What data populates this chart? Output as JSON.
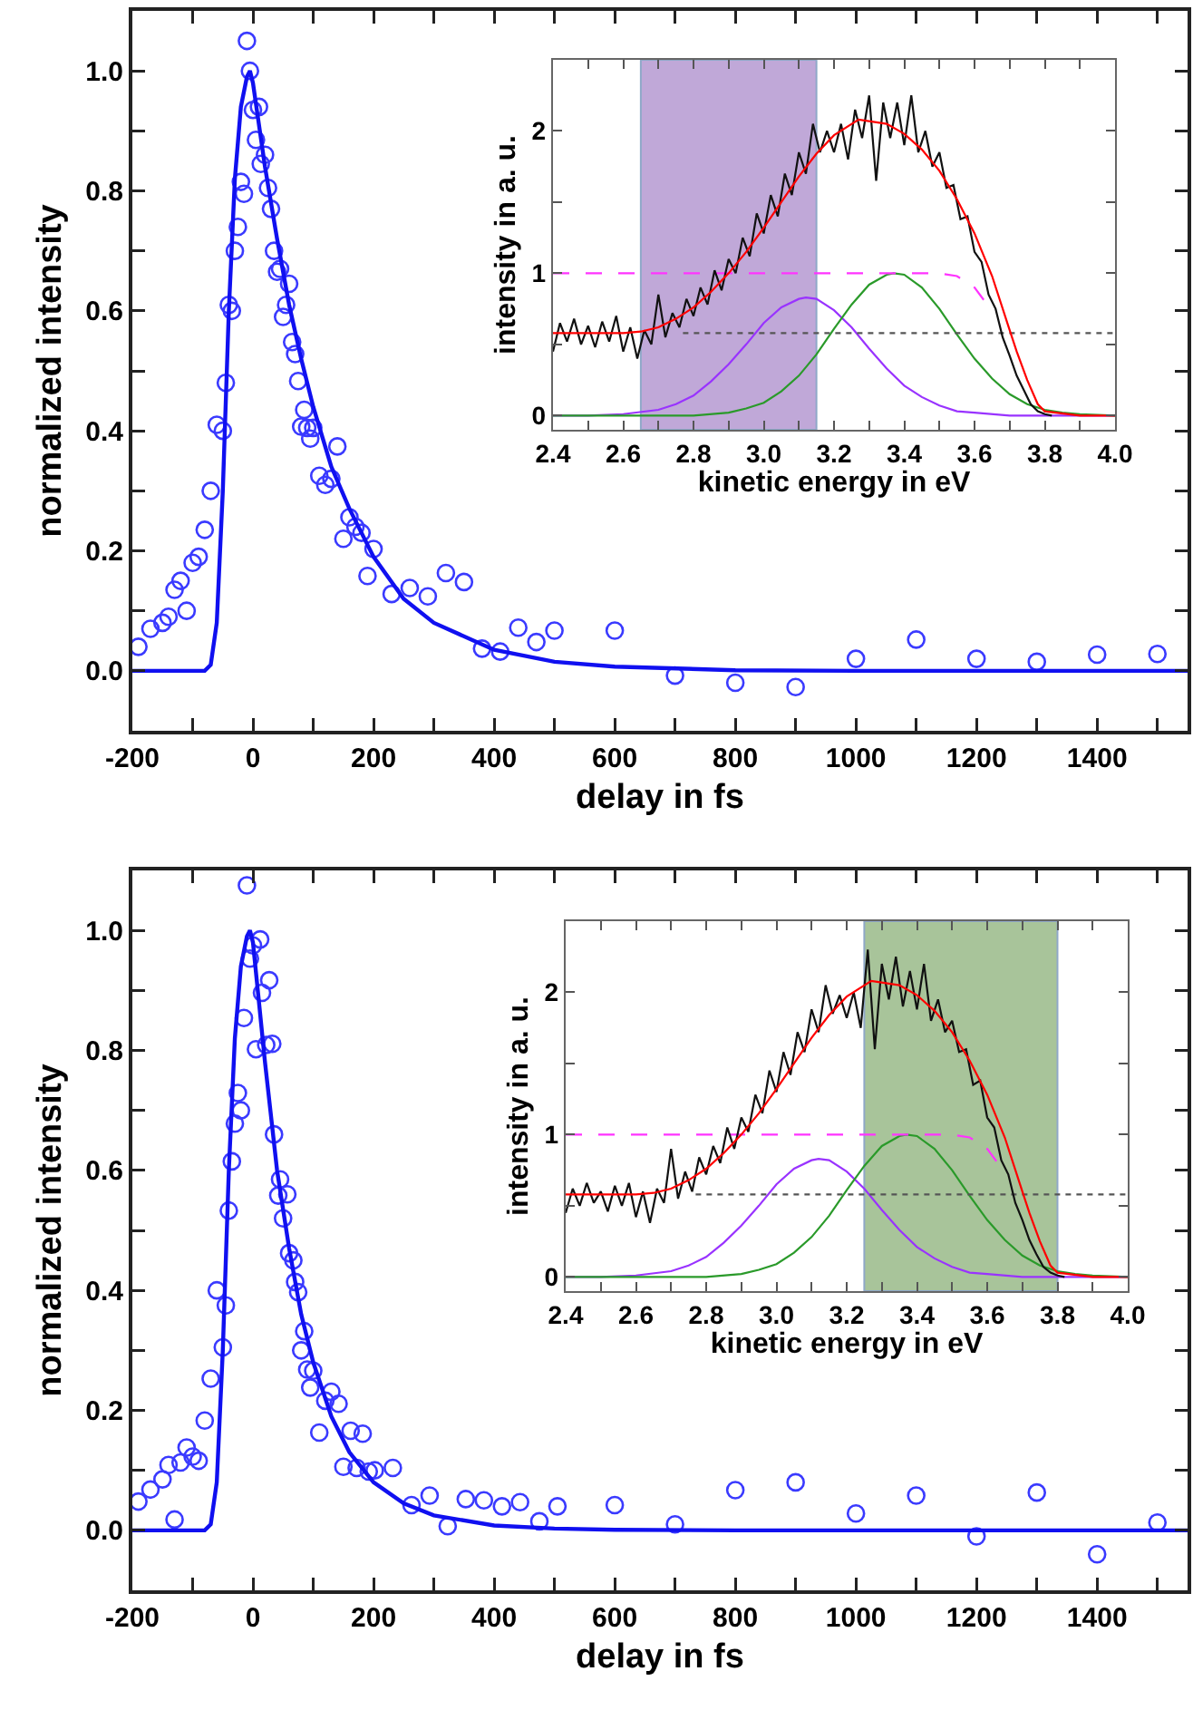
{
  "chart_data": [
    {
      "type": "scatter",
      "xlabel": "delay in fs",
      "ylabel": "normalized intensity",
      "xlim": [
        -200,
        1550
      ],
      "ylim": [
        -0.1,
        1.1
      ],
      "xticks": [
        -200,
        {
          "value": -100,
          "label": null
        },
        0,
        {
          "value": 100,
          "label": null
        },
        200,
        {
          "value": 300,
          "label": null
        },
        400,
        {
          "value": 500,
          "label": null
        },
        600,
        {
          "value": 700,
          "label": null
        },
        800,
        {
          "value": 900,
          "label": null
        },
        1000,
        {
          "value": 1100,
          "label": null
        },
        1200,
        {
          "value": 1300,
          "label": null
        },
        1400,
        {
          "value": 1500,
          "label": null
        }
      ],
      "yticks": [
        {
          "value": -0.1,
          "label": null
        },
        {
          "value": 0,
          "label": "0.0"
        },
        {
          "value": 0.1,
          "label": null
        },
        {
          "value": 0.2,
          "label": "0.2"
        },
        {
          "value": 0.3,
          "label": null
        },
        {
          "value": 0.4,
          "label": "0.4"
        },
        {
          "value": 0.5,
          "label": null
        },
        {
          "value": 0.6,
          "label": "0.6"
        },
        {
          "value": 0.7,
          "label": null
        },
        {
          "value": 0.8,
          "label": "0.8"
        },
        {
          "value": 0.9,
          "label": null
        },
        {
          "value": 1.0,
          "label": "1.0"
        }
      ],
      "series": [
        {
          "marker": "circle",
          "color": "#3a3aff",
          "x": [
            -190,
            -170,
            -150,
            -140,
            -130,
            -120,
            -110,
            -100,
            -90,
            -80,
            -70,
            -60,
            -50,
            -45,
            -40,
            -35,
            -30,
            -25,
            -20,
            -15,
            -10,
            -5,
            0,
            5,
            10,
            13,
            20,
            25,
            30,
            35,
            40,
            45,
            50,
            55,
            60,
            65,
            70,
            75,
            80,
            85,
            90,
            95,
            100,
            110,
            120,
            130,
            140,
            150,
            160,
            170,
            180,
            190,
            200,
            230,
            260,
            290,
            320,
            350,
            380,
            410,
            440,
            470,
            500,
            600,
            700,
            800,
            900,
            1000,
            1100,
            1200,
            1300,
            1400,
            1500
          ],
          "values": [
            0.04,
            0.07,
            0.08,
            0.09,
            0.135,
            0.15,
            0.1,
            0.18,
            0.19,
            0.235,
            0.3,
            0.41,
            0.4,
            0.48,
            0.61,
            0.6,
            0.7,
            0.74,
            0.815,
            0.795,
            1.05,
            1.0,
            0.935,
            0.885,
            0.94,
            0.845,
            0.86,
            0.805,
            0.77,
            0.7,
            0.665,
            0.67,
            0.59,
            0.61,
            0.645,
            0.548,
            0.528,
            0.483,
            0.407,
            0.435,
            0.405,
            0.387,
            0.405,
            0.325,
            0.31,
            0.32,
            0.374,
            0.22,
            0.256,
            0.24,
            0.23,
            0.158,
            0.203,
            0.128,
            0.138,
            0.124,
            0.163,
            0.148,
            0.037,
            0.032,
            0.072,
            0.048,
            0.067,
            0.067,
            -0.008,
            -0.02,
            -0.027,
            0.02,
            0.052,
            0.02,
            0.015,
            0.027,
            0.028
          ]
        },
        {
          "type": "line",
          "line_style": "solid",
          "color": "#1010f0",
          "x": [
            -200,
            -80,
            -70,
            -60,
            -50,
            -40,
            -30,
            -20,
            -10,
            -5,
            0,
            10,
            20,
            40,
            60,
            80,
            100,
            130,
            160,
            200,
            250,
            300,
            400,
            500,
            600,
            800,
            1000,
            1550
          ],
          "values": [
            0,
            0,
            0.01,
            0.08,
            0.3,
            0.6,
            0.82,
            0.94,
            0.99,
            1.0,
            0.98,
            0.91,
            0.84,
            0.72,
            0.61,
            0.52,
            0.44,
            0.34,
            0.27,
            0.19,
            0.12,
            0.08,
            0.035,
            0.015,
            0.007,
            0.001,
            0,
            0
          ]
        }
      ]
    },
    {
      "type": "line",
      "xlabel": "kinetic energy in eV",
      "ylabel": "intensity in a. u.",
      "xlim": [
        2.4,
        4.0
      ],
      "ylim": [
        -0.1,
        2.5
      ],
      "xticks": [
        {
          "value": 2.4,
          "label": "2.4"
        },
        {
          "value": 2.5,
          "label": null
        },
        {
          "value": 2.6,
          "label": "2.6"
        },
        {
          "value": 2.7,
          "label": null
        },
        {
          "value": 2.8,
          "label": "2.8"
        },
        {
          "value": 2.9,
          "label": null
        },
        {
          "value": 3.0,
          "label": "3.0"
        },
        {
          "value": 3.1,
          "label": null
        },
        {
          "value": 3.2,
          "label": "3.2"
        },
        {
          "value": 3.3,
          "label": null
        },
        {
          "value": 3.4,
          "label": "3.4"
        },
        {
          "value": 3.5,
          "label": null
        },
        {
          "value": 3.6,
          "label": "3.6"
        },
        {
          "value": 3.7,
          "label": null
        },
        {
          "value": 3.8,
          "label": "3.8"
        },
        {
          "value": 3.9,
          "label": null
        },
        {
          "value": 4.0,
          "label": "4.0"
        }
      ],
      "yticks": [
        0,
        {
          "value": 0.5,
          "label": null
        },
        1,
        {
          "value": 1.5,
          "label": null
        },
        2
      ],
      "bands": [
        {
          "axis": "x",
          "from": 2.65,
          "to": 3.15,
          "color": "#c0a8d8"
        }
      ],
      "series": [
        {
          "line_style": "solid",
          "color": "#9933ff",
          "x": [
            2.4,
            2.5,
            2.6,
            2.7,
            2.75,
            2.8,
            2.85,
            2.9,
            2.95,
            3.0,
            3.05,
            3.1,
            3.12,
            3.15,
            3.2,
            3.25,
            3.3,
            3.35,
            3.4,
            3.45,
            3.5,
            3.55,
            3.6,
            3.7,
            3.8,
            4.0
          ],
          "values": [
            0,
            0,
            0.01,
            0.04,
            0.08,
            0.14,
            0.24,
            0.36,
            0.5,
            0.65,
            0.76,
            0.82,
            0.83,
            0.82,
            0.74,
            0.62,
            0.47,
            0.33,
            0.21,
            0.13,
            0.07,
            0.03,
            0.02,
            0,
            0,
            0
          ]
        },
        {
          "type": "line",
          "line_style": "solid",
          "color": "#2a9a2a",
          "x": [
            2.4,
            2.7,
            2.8,
            2.9,
            2.95,
            3.0,
            3.05,
            3.1,
            3.15,
            3.2,
            3.25,
            3.3,
            3.35,
            3.37,
            3.4,
            3.45,
            3.5,
            3.55,
            3.6,
            3.65,
            3.7,
            3.75,
            3.8,
            3.85,
            3.9,
            4.0
          ],
          "values": [
            0,
            0,
            0,
            0.02,
            0.05,
            0.09,
            0.17,
            0.28,
            0.43,
            0.61,
            0.78,
            0.92,
            0.99,
            1.0,
            0.99,
            0.9,
            0.75,
            0.57,
            0.4,
            0.26,
            0.15,
            0.08,
            0.04,
            0.02,
            0.01,
            0
          ]
        },
        {
          "type": "line",
          "line_style": "dotted",
          "color": "#555555",
          "x": [
            2.77,
            4.0
          ],
          "values": [
            0.58,
            0.58
          ]
        },
        {
          "type": "line",
          "line_style": "dashed",
          "color": "#ff33ff",
          "x": [
            2.4,
            3.5,
            3.55,
            3.6,
            3.63
          ],
          "values": [
            1,
            1,
            0.98,
            0.9,
            0.8
          ]
        },
        {
          "type": "line",
          "line_style": "solid",
          "color": "#111111",
          "x": [
            2.4,
            2.42,
            2.44,
            2.46,
            2.48,
            2.5,
            2.52,
            2.54,
            2.56,
            2.58,
            2.6,
            2.62,
            2.64,
            2.66,
            2.68,
            2.7,
            2.72,
            2.74,
            2.76,
            2.78,
            2.8,
            2.82,
            2.84,
            2.86,
            2.88,
            2.9,
            2.92,
            2.94,
            2.96,
            2.98,
            3.0,
            3.02,
            3.04,
            3.06,
            3.08,
            3.1,
            3.12,
            3.14,
            3.16,
            3.18,
            3.2,
            3.22,
            3.24,
            3.26,
            3.28,
            3.3,
            3.32,
            3.34,
            3.36,
            3.38,
            3.4,
            3.42,
            3.44,
            3.46,
            3.48,
            3.5,
            3.52,
            3.54,
            3.56,
            3.58,
            3.6,
            3.62,
            3.64,
            3.66,
            3.68,
            3.7,
            3.72,
            3.74,
            3.76,
            3.78,
            3.8,
            3.82
          ],
          "values": [
            0.45,
            0.65,
            0.52,
            0.68,
            0.5,
            0.63,
            0.48,
            0.66,
            0.52,
            0.7,
            0.45,
            0.62,
            0.4,
            0.6,
            0.5,
            0.85,
            0.55,
            0.72,
            0.62,
            0.82,
            0.7,
            0.9,
            0.78,
            1.02,
            0.88,
            1.1,
            1.0,
            1.25,
            1.12,
            1.42,
            1.28,
            1.55,
            1.4,
            1.7,
            1.55,
            1.85,
            1.7,
            2.05,
            1.85,
            2.0,
            1.85,
            2.05,
            1.8,
            2.15,
            1.95,
            2.25,
            1.65,
            2.2,
            1.95,
            2.2,
            1.9,
            2.25,
            1.85,
            2.0,
            1.75,
            1.85,
            1.6,
            1.62,
            1.38,
            1.4,
            1.15,
            1.08,
            0.85,
            0.75,
            0.55,
            0.42,
            0.28,
            0.18,
            0.08,
            0.03,
            0.01,
            0.0
          ]
        },
        {
          "type": "line",
          "line_style": "solid",
          "color": "#ff0000",
          "x": [
            2.4,
            2.5,
            2.6,
            2.65,
            2.7,
            2.75,
            2.8,
            2.85,
            2.9,
            2.95,
            3.0,
            3.05,
            3.1,
            3.15,
            3.2,
            3.27,
            3.35,
            3.4,
            3.45,
            3.5,
            3.55,
            3.6,
            3.65,
            3.7,
            3.72,
            3.75,
            3.78,
            3.8,
            3.9,
            4.0
          ],
          "values": [
            0.58,
            0.58,
            0.58,
            0.59,
            0.62,
            0.68,
            0.76,
            0.87,
            1.0,
            1.15,
            1.32,
            1.5,
            1.68,
            1.84,
            1.97,
            2.08,
            2.05,
            1.98,
            1.87,
            1.72,
            1.52,
            1.28,
            0.98,
            0.6,
            0.45,
            0.25,
            0.08,
            0.03,
            0,
            0
          ]
        }
      ]
    },
    {
      "type": "scatter",
      "xlabel": "delay in fs",
      "ylabel": "normalized intensity",
      "xlim": [
        -200,
        1550
      ],
      "ylim": [
        -0.1,
        1.1
      ],
      "xticks": [
        -200,
        {
          "value": -100,
          "label": null
        },
        0,
        {
          "value": 100,
          "label": null
        },
        200,
        {
          "value": 300,
          "label": null
        },
        400,
        {
          "value": 500,
          "label": null
        },
        600,
        {
          "value": 700,
          "label": null
        },
        800,
        {
          "value": 900,
          "label": null
        },
        1000,
        {
          "value": 1100,
          "label": null
        },
        1200,
        {
          "value": 1300,
          "label": null
        },
        1400,
        {
          "value": 1500,
          "label": null
        }
      ],
      "yticks": [
        {
          "value": -0.1,
          "label": null
        },
        {
          "value": 0,
          "label": "0.0"
        },
        {
          "value": 0.1,
          "label": null
        },
        {
          "value": 0.2,
          "label": "0.2"
        },
        {
          "value": 0.3,
          "label": null
        },
        {
          "value": 0.4,
          "label": "0.4"
        },
        {
          "value": 0.5,
          "label": null
        },
        {
          "value": 0.6,
          "label": "0.6"
        },
        {
          "value": 0.7,
          "label": null
        },
        {
          "value": 0.8,
          "label": "0.8"
        },
        {
          "value": 0.9,
          "label": null
        },
        {
          "value": 1.0,
          "label": "1.0"
        }
      ],
      "series": [
        {
          "marker": "circle",
          "color": "#3a3aff",
          "x": [
            -190,
            -170,
            -150,
            -140,
            -130,
            -120,
            -110,
            -100,
            -90,
            -80,
            -70,
            -60,
            -50,
            -45,
            -40,
            -35,
            -30,
            -25,
            -20,
            -15,
            -10,
            -5,
            0,
            5,
            12,
            15,
            22,
            27,
            32,
            35,
            42,
            45,
            50,
            57,
            60,
            67,
            70,
            75,
            80,
            85,
            90,
            95,
            100,
            110,
            120,
            130,
            142,
            150,
            162,
            172,
            182,
            192,
            202,
            232,
            263,
            293,
            323,
            353,
            383,
            413,
            443,
            475,
            505,
            600,
            700,
            800,
            900,
            1000,
            1100,
            1200,
            1300,
            1400,
            1500
          ],
          "values": [
            0.048,
            0.068,
            0.085,
            0.109,
            0.018,
            0.113,
            0.138,
            0.123,
            0.116,
            0.183,
            0.253,
            0.4,
            0.305,
            0.375,
            0.533,
            0.615,
            0.678,
            0.729,
            0.7,
            0.854,
            1.075,
            0.953,
            0.975,
            0.802,
            0.985,
            0.896,
            0.809,
            0.917,
            0.811,
            0.66,
            0.558,
            0.585,
            0.52,
            0.56,
            0.462,
            0.45,
            0.414,
            0.397,
            0.3,
            0.332,
            0.268,
            0.238,
            0.266,
            0.163,
            0.216,
            0.231,
            0.211,
            0.106,
            0.166,
            0.104,
            0.161,
            0.098,
            0.1,
            0.104,
            0.042,
            0.058,
            0.007,
            0.052,
            0.05,
            0.04,
            0.047,
            0.015,
            0.04,
            0.042,
            0.01,
            0.067,
            0.08,
            0.028,
            0.058,
            -0.01,
            0.063,
            -0.04,
            0.013
          ]
        },
        {
          "type": "line",
          "line_style": "solid",
          "color": "#1010f0",
          "x": [
            -200,
            -80,
            -70,
            -60,
            -50,
            -40,
            -30,
            -20,
            -10,
            -5,
            0,
            10,
            20,
            40,
            60,
            80,
            100,
            130,
            160,
            200,
            250,
            300,
            400,
            500,
            600,
            800,
            1000,
            1550
          ],
          "values": [
            0,
            0,
            0.01,
            0.08,
            0.3,
            0.6,
            0.82,
            0.94,
            0.99,
            1.0,
            0.98,
            0.88,
            0.78,
            0.6,
            0.47,
            0.36,
            0.28,
            0.19,
            0.13,
            0.08,
            0.045,
            0.025,
            0.008,
            0.003,
            0.001,
            0,
            0,
            0
          ]
        }
      ]
    },
    {
      "type": "line",
      "xlabel": "kinetic energy in eV",
      "ylabel": "intensity in a. u.",
      "xlim": [
        2.4,
        4.0
      ],
      "ylim": [
        -0.1,
        2.5
      ],
      "xticks": [
        {
          "value": 2.4,
          "label": "2.4"
        },
        {
          "value": 2.5,
          "label": null
        },
        {
          "value": 2.6,
          "label": "2.6"
        },
        {
          "value": 2.7,
          "label": null
        },
        {
          "value": 2.8,
          "label": "2.8"
        },
        {
          "value": 2.9,
          "label": null
        },
        {
          "value": 3.0,
          "label": "3.0"
        },
        {
          "value": 3.1,
          "label": null
        },
        {
          "value": 3.2,
          "label": "3.2"
        },
        {
          "value": 3.3,
          "label": null
        },
        {
          "value": 3.4,
          "label": "3.4"
        },
        {
          "value": 3.5,
          "label": null
        },
        {
          "value": 3.6,
          "label": "3.6"
        },
        {
          "value": 3.7,
          "label": null
        },
        {
          "value": 3.8,
          "label": "3.8"
        },
        {
          "value": 3.9,
          "label": null
        },
        {
          "value": 4.0,
          "label": "4.0"
        }
      ],
      "yticks": [
        0,
        {
          "value": 0.5,
          "label": null
        },
        1,
        {
          "value": 1.5,
          "label": null
        },
        2
      ],
      "bands": [
        {
          "axis": "x",
          "from": 3.25,
          "to": 3.8,
          "color": "#a8c49a"
        }
      ],
      "series": [
        {
          "line_style": "solid",
          "color": "#9933ff",
          "x": [
            2.4,
            2.5,
            2.6,
            2.7,
            2.75,
            2.8,
            2.85,
            2.9,
            2.95,
            3.0,
            3.05,
            3.1,
            3.12,
            3.15,
            3.2,
            3.25,
            3.3,
            3.35,
            3.4,
            3.45,
            3.5,
            3.55,
            3.6,
            3.7,
            3.8,
            4.0
          ],
          "values": [
            0,
            0,
            0.01,
            0.04,
            0.08,
            0.14,
            0.24,
            0.36,
            0.5,
            0.65,
            0.76,
            0.82,
            0.83,
            0.82,
            0.74,
            0.62,
            0.47,
            0.33,
            0.21,
            0.13,
            0.07,
            0.03,
            0.02,
            0,
            0,
            0
          ]
        },
        {
          "type": "line",
          "line_style": "solid",
          "color": "#2a9a2a",
          "x": [
            2.4,
            2.7,
            2.8,
            2.9,
            2.95,
            3.0,
            3.05,
            3.1,
            3.15,
            3.2,
            3.25,
            3.3,
            3.35,
            3.37,
            3.4,
            3.45,
            3.5,
            3.55,
            3.6,
            3.65,
            3.7,
            3.75,
            3.8,
            3.85,
            3.9,
            4.0
          ],
          "values": [
            0,
            0,
            0,
            0.02,
            0.05,
            0.09,
            0.17,
            0.28,
            0.43,
            0.61,
            0.78,
            0.92,
            0.99,
            1.0,
            0.99,
            0.9,
            0.75,
            0.57,
            0.4,
            0.26,
            0.15,
            0.08,
            0.04,
            0.02,
            0.01,
            0
          ]
        },
        {
          "type": "line",
          "line_style": "dotted",
          "color": "#555555",
          "x": [
            2.77,
            4.0
          ],
          "values": [
            0.58,
            0.58
          ]
        },
        {
          "type": "line",
          "line_style": "dashed",
          "color": "#ff33ff",
          "x": [
            2.4,
            3.5,
            3.55,
            3.6,
            3.63
          ],
          "values": [
            1,
            1,
            0.98,
            0.9,
            0.8
          ]
        },
        {
          "type": "line",
          "line_style": "solid",
          "color": "#111111",
          "x": [
            2.4,
            2.42,
            2.44,
            2.46,
            2.48,
            2.5,
            2.52,
            2.54,
            2.56,
            2.58,
            2.6,
            2.62,
            2.64,
            2.66,
            2.68,
            2.7,
            2.72,
            2.74,
            2.76,
            2.78,
            2.8,
            2.82,
            2.84,
            2.86,
            2.88,
            2.9,
            2.92,
            2.94,
            2.96,
            2.98,
            3.0,
            3.02,
            3.04,
            3.06,
            3.08,
            3.1,
            3.12,
            3.14,
            3.16,
            3.18,
            3.2,
            3.22,
            3.24,
            3.26,
            3.28,
            3.3,
            3.32,
            3.34,
            3.36,
            3.38,
            3.4,
            3.42,
            3.44,
            3.46,
            3.48,
            3.5,
            3.52,
            3.54,
            3.56,
            3.58,
            3.6,
            3.62,
            3.64,
            3.66,
            3.68,
            3.7,
            3.72,
            3.74,
            3.76,
            3.78,
            3.8,
            3.82
          ],
          "values": [
            0.45,
            0.62,
            0.5,
            0.66,
            0.52,
            0.6,
            0.46,
            0.64,
            0.5,
            0.66,
            0.42,
            0.6,
            0.38,
            0.62,
            0.52,
            0.9,
            0.55,
            0.74,
            0.6,
            0.84,
            0.72,
            0.92,
            0.8,
            1.05,
            0.9,
            1.12,
            1.02,
            1.28,
            1.15,
            1.45,
            1.3,
            1.58,
            1.42,
            1.72,
            1.58,
            1.88,
            1.72,
            2.05,
            1.85,
            1.98,
            1.82,
            2.0,
            1.75,
            2.3,
            1.6,
            2.2,
            1.95,
            2.25,
            1.9,
            2.15,
            1.88,
            2.2,
            1.8,
            1.95,
            1.72,
            1.8,
            1.58,
            1.6,
            1.35,
            1.38,
            1.12,
            1.05,
            0.82,
            0.72,
            0.52,
            0.4,
            0.26,
            0.16,
            0.07,
            0.03,
            0.01,
            0.0
          ]
        },
        {
          "type": "line",
          "line_style": "solid",
          "color": "#ff0000",
          "x": [
            2.4,
            2.5,
            2.6,
            2.65,
            2.7,
            2.75,
            2.8,
            2.85,
            2.9,
            2.95,
            3.0,
            3.05,
            3.1,
            3.15,
            3.2,
            3.27,
            3.35,
            3.4,
            3.45,
            3.5,
            3.55,
            3.6,
            3.65,
            3.7,
            3.72,
            3.75,
            3.78,
            3.8,
            3.9,
            4.0
          ],
          "values": [
            0.58,
            0.58,
            0.58,
            0.59,
            0.62,
            0.68,
            0.76,
            0.87,
            1.0,
            1.15,
            1.32,
            1.5,
            1.68,
            1.84,
            1.97,
            2.08,
            2.05,
            1.98,
            1.87,
            1.72,
            1.52,
            1.28,
            0.98,
            0.6,
            0.45,
            0.25,
            0.08,
            0.03,
            0,
            0
          ]
        }
      ]
    }
  ]
}
